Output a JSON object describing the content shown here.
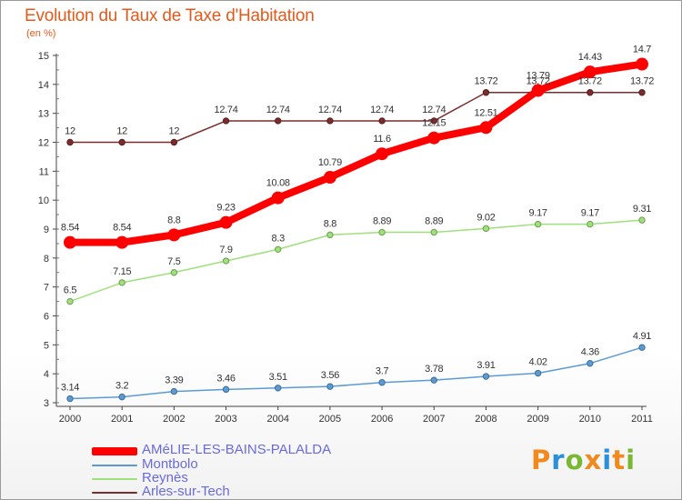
{
  "title": "Evolution du Taux de Taxe d'Habitation",
  "unit_label": "(en %)",
  "logo": {
    "text": "Proxiti"
  },
  "chart_data": {
    "type": "line",
    "x": [
      "2000",
      "2001",
      "2002",
      "2003",
      "2004",
      "2005",
      "2006",
      "2007",
      "2008",
      "2009",
      "2010",
      "2011"
    ],
    "yticks": [
      "3",
      "4",
      "5",
      "6",
      "7",
      "8",
      "9",
      "10",
      "11",
      "12",
      "13",
      "14",
      "15"
    ],
    "ylim": [
      3,
      15
    ],
    "grid": false,
    "legend": "bottom-left",
    "series": [
      {
        "name": "AMéLIE-LES-BAINS-PALALDA",
        "color": "#ff0000",
        "values": [
          8.54,
          8.54,
          8.8,
          9.23,
          10.08,
          10.79,
          11.6,
          12.15,
          12.51,
          13.79,
          14.43,
          14.7
        ],
        "labels": [
          "8.54",
          "8.54",
          "8.8",
          "9.23",
          "10.08",
          "10.79",
          "11.6",
          "12.15",
          "12.51",
          "13.79",
          "14.43",
          "14.7"
        ]
      },
      {
        "name": "Montbolo",
        "color": "#5b9bd5",
        "values": [
          3.14,
          3.2,
          3.39,
          3.46,
          3.51,
          3.56,
          3.7,
          3.78,
          3.91,
          4.02,
          4.36,
          4.91
        ],
        "labels": [
          "3.14",
          "3.2",
          "3.39",
          "3.46",
          "3.51",
          "3.56",
          "3.7",
          "3.78",
          "3.91",
          "4.02",
          "4.36",
          "4.91"
        ]
      },
      {
        "name": "Reynès",
        "color": "#9ee07a",
        "values": [
          6.5,
          7.15,
          7.5,
          7.9,
          8.3,
          8.8,
          8.89,
          8.89,
          9.02,
          9.17,
          9.17,
          9.31
        ],
        "labels": [
          "6.5",
          "7.15",
          "7.5",
          "7.9",
          "8.3",
          "8.8",
          "8.89",
          "8.89",
          "9.02",
          "9.17",
          "9.17",
          "9.31"
        ]
      },
      {
        "name": "Arles-sur-Tech",
        "color": "#7b2d2d",
        "values": [
          12,
          12,
          12,
          12.74,
          12.74,
          12.74,
          12.74,
          12.74,
          13.72,
          13.72,
          13.72,
          13.72
        ],
        "labels": [
          "12",
          "12",
          "12",
          "12.74",
          "12.74",
          "12.74",
          "12.74",
          "12.74",
          "13.72",
          "13.72",
          "13.72",
          "13.72"
        ]
      }
    ]
  }
}
